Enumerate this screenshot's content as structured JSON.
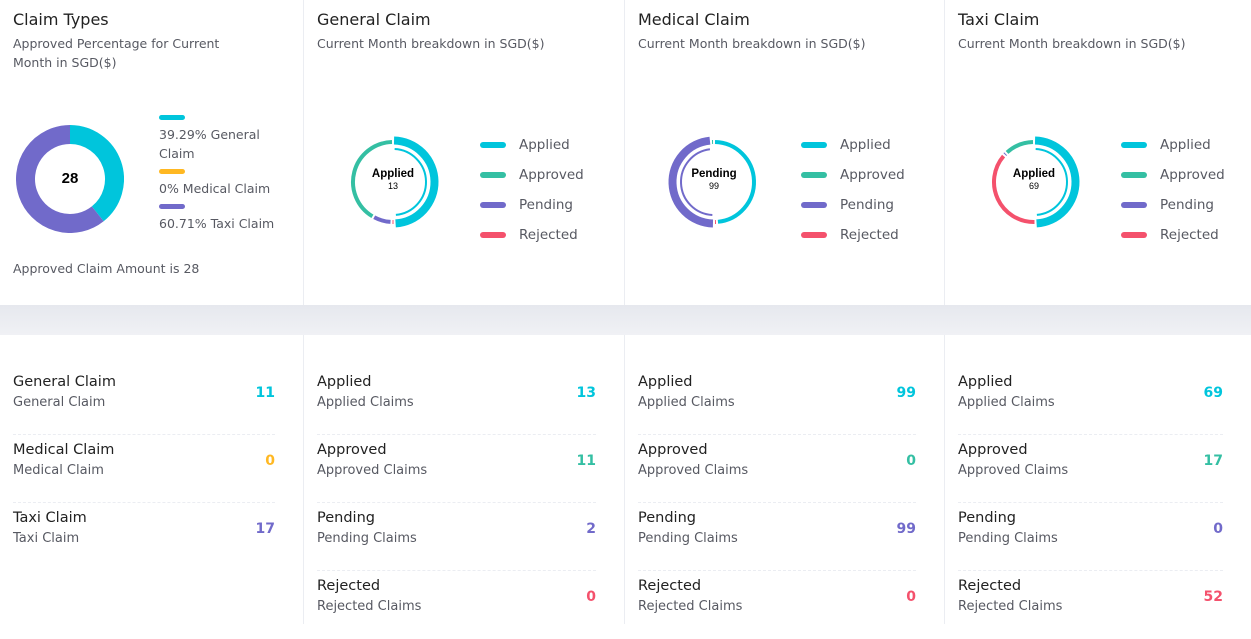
{
  "colors": {
    "applied": "#00c5dc",
    "approved": "#34bfa3",
    "pending": "#716aca",
    "rejected": "#f4516c",
    "medical": "#ffb822"
  },
  "claim_types": {
    "title": "Claim Types",
    "subtitle": "Approved Percentage for Current Month in SGD($)",
    "center_value": "28",
    "legend": [
      {
        "label": "39.29% General Claim",
        "color": "#00c5dc",
        "value": 39.29
      },
      {
        "label": "0% Medical Claim",
        "color": "#ffb822",
        "value": 0
      },
      {
        "label": "60.71% Taxi Claim",
        "color": "#716aca",
        "value": 60.71
      }
    ],
    "footer": "Approved Claim Amount is 28"
  },
  "legend_labels": [
    "Applied",
    "Approved",
    "Pending",
    "Rejected"
  ],
  "breakdowns": [
    {
      "title": "General Claim",
      "subtitle": "Current Month breakdown in SGD($)",
      "center_label": "Applied",
      "center_value": "13",
      "highlight": "applied",
      "values": {
        "applied": 13,
        "approved": 11,
        "pending": 2,
        "rejected": 0
      }
    },
    {
      "title": "Medical Claim",
      "subtitle": "Current Month breakdown in SGD($)",
      "center_label": "Pending",
      "center_value": "99",
      "highlight": "pending",
      "values": {
        "applied": 99,
        "approved": 0,
        "pending": 99,
        "rejected": 0
      }
    },
    {
      "title": "Taxi Claim",
      "subtitle": "Current Month breakdown in SGD($)",
      "center_label": "Applied",
      "center_value": "69",
      "highlight": "applied",
      "values": {
        "applied": 69,
        "approved": 17,
        "pending": 0,
        "rejected": 52
      }
    }
  ],
  "summary": [
    {
      "title": "General Claim",
      "desc": "General Claim",
      "value": "11",
      "color": "#00c5dc"
    },
    {
      "title": "Medical Claim",
      "desc": "Medical Claim",
      "value": "0",
      "color": "#ffb822"
    },
    {
      "title": "Taxi Claim",
      "desc": "Taxi Claim",
      "value": "17",
      "color": "#716aca"
    }
  ],
  "status_lists": [
    [
      {
        "title": "Applied",
        "desc": "Applied Claims",
        "value": "13"
      },
      {
        "title": "Approved",
        "desc": "Approved Claims",
        "value": "11"
      },
      {
        "title": "Pending",
        "desc": "Pending Claims",
        "value": "2"
      },
      {
        "title": "Rejected",
        "desc": "Rejected Claims",
        "value": "0"
      }
    ],
    [
      {
        "title": "Applied",
        "desc": "Applied Claims",
        "value": "99"
      },
      {
        "title": "Approved",
        "desc": "Approved Claims",
        "value": "0"
      },
      {
        "title": "Pending",
        "desc": "Pending Claims",
        "value": "99"
      },
      {
        "title": "Rejected",
        "desc": "Rejected Claims",
        "value": "0"
      }
    ],
    [
      {
        "title": "Applied",
        "desc": "Applied Claims",
        "value": "69"
      },
      {
        "title": "Approved",
        "desc": "Approved Claims",
        "value": "17"
      },
      {
        "title": "Pending",
        "desc": "Pending Claims",
        "value": "0"
      },
      {
        "title": "Rejected",
        "desc": "Rejected Claims",
        "value": "52"
      }
    ]
  ]
}
